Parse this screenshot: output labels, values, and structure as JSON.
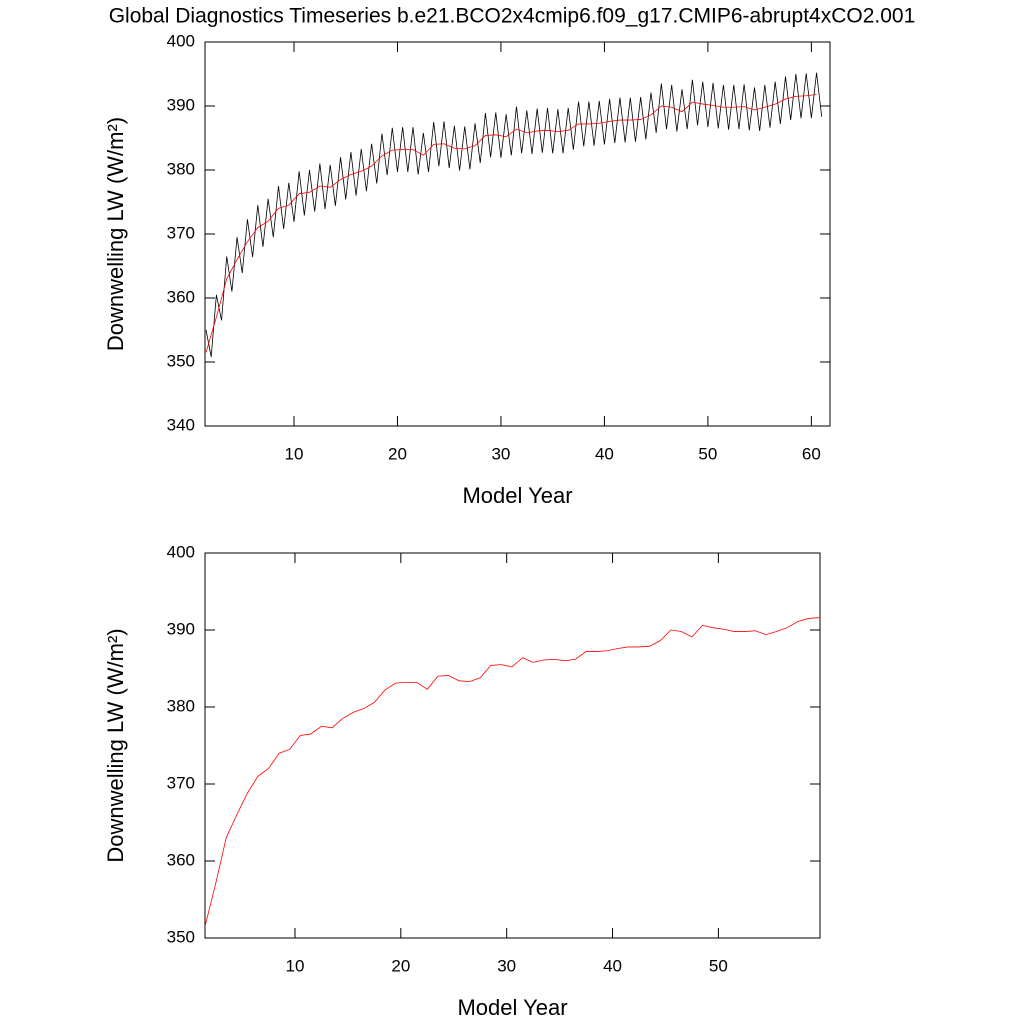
{
  "chart_data": [
    {
      "type": "line",
      "title": "Global Diagnostics Timeseries b.e21.BCO2x4cmip6.f09_g17.CMIP6-abrupt4xCO2.001",
      "xlabel": "Model Year",
      "ylabel": "Downwelling LW (W/m²)",
      "xlim": [
        1.4,
        61.8
      ],
      "ylim": [
        340,
        400
      ],
      "xticks": [
        10,
        20,
        30,
        40,
        50,
        60
      ],
      "yticks": [
        340,
        350,
        360,
        370,
        380,
        390,
        400
      ],
      "series": [
        {
          "color": "#000000",
          "x": [
            1.5,
            2,
            2.5,
            3,
            3.5,
            4,
            4.5,
            5,
            5.5,
            6,
            6.5,
            7,
            7.5,
            8,
            8.5,
            9,
            9.5,
            10,
            10.5,
            11,
            11.5,
            12,
            12.5,
            13,
            13.5,
            14,
            14.5,
            15,
            15.5,
            16,
            16.5,
            17,
            17.5,
            18,
            18.5,
            19,
            19.5,
            20,
            20.5,
            21,
            21.5,
            22,
            22.5,
            23,
            23.5,
            24,
            24.5,
            25,
            25.5,
            26,
            26.5,
            27,
            27.5,
            28,
            28.5,
            29,
            29.5,
            30,
            30.5,
            31,
            31.5,
            32,
            32.5,
            33,
            33.5,
            34,
            34.5,
            35,
            35.5,
            36,
            36.5,
            37,
            37.5,
            38,
            38.5,
            39,
            39.5,
            40,
            40.5,
            41,
            41.5,
            42,
            42.5,
            43,
            43.5,
            44,
            44.5,
            45,
            45.5,
            46,
            46.5,
            47,
            47.5,
            48,
            48.5,
            49,
            49.5,
            50,
            50.5,
            51,
            51.5,
            52,
            52.5,
            53,
            53.5,
            54,
            54.5,
            55,
            55.5,
            56,
            56.5,
            57,
            57.5,
            58,
            58.5,
            59,
            59.5,
            60,
            60.5,
            61
          ],
          "values": [
            355,
            350.8,
            360.5,
            356.5,
            366.5,
            361,
            369.5,
            363.9,
            372.3,
            366.4,
            374.5,
            368,
            375.5,
            369.5,
            377.5,
            370.8,
            378,
            371.9,
            379.8,
            372.9,
            380,
            373.5,
            381,
            373.9,
            380.8,
            374.4,
            382,
            375.4,
            382.8,
            376,
            383.3,
            376.7,
            384.1,
            377.9,
            385.7,
            379.2,
            386.6,
            379.7,
            386.7,
            379.7,
            386.7,
            379.3,
            385.8,
            379.7,
            387.5,
            380.6,
            387.6,
            380.3,
            386.9,
            379.9,
            386.8,
            380.1,
            387.3,
            381.1,
            388.9,
            382,
            389,
            381.9,
            388.7,
            382.3,
            389.9,
            382.6,
            389.3,
            382.5,
            389.6,
            382.7,
            389.7,
            382.6,
            389.5,
            382.6,
            389.7,
            383.2,
            390.7,
            383.7,
            390.7,
            383.8,
            390.8,
            384,
            391.1,
            384.2,
            391.3,
            384.3,
            391.3,
            384.4,
            391.4,
            384.8,
            392.1,
            385.8,
            393.5,
            386.4,
            393.3,
            386,
            392.6,
            386.4,
            394.1,
            387,
            393.8,
            386.7,
            393.6,
            386.5,
            393.3,
            386.3,
            393.3,
            386.4,
            393.4,
            386.2,
            392.9,
            386.1,
            393.3,
            386.6,
            393.8,
            387.2,
            394.6,
            387.8,
            395,
            388.1,
            395.1,
            388.1,
            395.2,
            388.3
          ]
        },
        {
          "color": "#ff0000",
          "x": [
            1.5,
            2.5,
            3.5,
            4.5,
            5.5,
            6.5,
            7.5,
            8.5,
            9.5,
            10.5,
            11.5,
            12.5,
            13.5,
            14.5,
            15.5,
            16.5,
            17.5,
            18.5,
            19.5,
            20.5,
            21.5,
            22.5,
            23.5,
            24.5,
            25.5,
            26.5,
            27.5,
            28.5,
            29.5,
            30.5,
            31.5,
            32.5,
            33.5,
            34.5,
            35.5,
            36.5,
            37.5,
            38.5,
            39.5,
            40.5,
            41.5,
            42.5,
            43.5,
            44.5,
            45.5,
            46.5,
            47.5,
            48.5,
            49.5,
            50.5,
            51.5,
            52.5,
            53.5,
            54.5,
            55.5,
            56.5,
            57.5,
            58.5,
            59.5,
            60.5
          ],
          "values": [
            351.5,
            357,
            363,
            366,
            368.8,
            371,
            372,
            374,
            374.5,
            376.3,
            376.5,
            377.5,
            377.3,
            378.5,
            379.3,
            379.8,
            380.6,
            382.2,
            383.1,
            383.2,
            383.2,
            382.3,
            384,
            384.1,
            383.4,
            383.3,
            383.8,
            385.4,
            385.5,
            385.2,
            386.4,
            385.8,
            386.1,
            386.2,
            386,
            386.2,
            387.2,
            387.2,
            387.3,
            387.6,
            387.8,
            387.8,
            387.9,
            388.6,
            390,
            389.8,
            389.1,
            390.6,
            390.3,
            390.1,
            389.8,
            389.8,
            389.9,
            389.4,
            389.8,
            390.3,
            391.1,
            391.5,
            391.6,
            391.8
          ]
        }
      ]
    },
    {
      "type": "line",
      "xlabel": "Model Year",
      "ylabel": "Downwelling LW (W/m²)",
      "xlim": [
        1.5,
        59.6
      ],
      "ylim": [
        350,
        400
      ],
      "xticks": [
        10,
        20,
        30,
        40,
        50
      ],
      "yticks": [
        350,
        360,
        370,
        380,
        390,
        400
      ],
      "series": [
        {
          "color": "#ff0000",
          "x": [
            1.5,
            2.5,
            3.5,
            4.5,
            5.5,
            6.5,
            7.5,
            8.5,
            9.5,
            10.5,
            11.5,
            12.5,
            13.5,
            14.5,
            15.5,
            16.5,
            17.5,
            18.5,
            19.5,
            20.5,
            21.5,
            22.5,
            23.5,
            24.5,
            25.5,
            26.5,
            27.5,
            28.5,
            29.5,
            30.5,
            31.5,
            32.5,
            33.5,
            34.5,
            35.5,
            36.5,
            37.5,
            38.5,
            39.5,
            40.5,
            41.5,
            42.5,
            43.5,
            44.5,
            45.5,
            46.5,
            47.5,
            48.5,
            49.5,
            50.5,
            51.5,
            52.5,
            53.5,
            54.5,
            55.5,
            56.5,
            57.5,
            58.5,
            59.5
          ],
          "values": [
            351.5,
            357,
            363,
            366,
            368.8,
            371,
            372,
            374,
            374.5,
            376.3,
            376.5,
            377.5,
            377.3,
            378.5,
            379.3,
            379.8,
            380.6,
            382.2,
            383.1,
            383.2,
            383.2,
            382.3,
            384,
            384.1,
            383.4,
            383.3,
            383.8,
            385.4,
            385.5,
            385.2,
            386.4,
            385.8,
            386.1,
            386.2,
            386,
            386.2,
            387.2,
            387.2,
            387.3,
            387.6,
            387.8,
            387.8,
            387.9,
            388.6,
            390,
            389.8,
            389.1,
            390.6,
            390.3,
            390.1,
            389.8,
            389.8,
            389.9,
            389.4,
            389.8,
            390.3,
            391.1,
            391.5,
            391.6
          ]
        }
      ]
    }
  ]
}
